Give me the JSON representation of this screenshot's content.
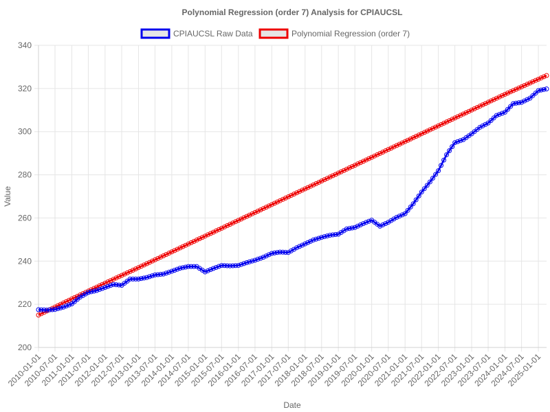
{
  "chart_data": {
    "type": "line",
    "title": "Polynomial Regression (order 7) Analysis for CPIAUCSL",
    "xlabel": "Date",
    "ylabel": "Value",
    "ylim": [
      200,
      340
    ],
    "y_ticks": [
      "200",
      "220",
      "240",
      "260",
      "280",
      "300",
      "320",
      "340"
    ],
    "x_ticks": [
      "2010-01-01",
      "2010-07-01",
      "2011-01-01",
      "2011-07-01",
      "2012-01-01",
      "2012-07-01",
      "2013-01-01",
      "2013-07-01",
      "2014-01-01",
      "2014-07-01",
      "2015-01-01",
      "2015-07-01",
      "2016-01-01",
      "2016-07-01",
      "2017-01-01",
      "2017-07-01",
      "2018-01-01",
      "2018-07-01",
      "2019-01-01",
      "2019-07-01",
      "2020-01-01",
      "2020-07-01",
      "2021-01-01",
      "2021-07-01",
      "2022-01-01",
      "2022-07-01",
      "2023-01-01",
      "2023-07-01",
      "2024-01-01",
      "2024-07-01",
      "2025-01-01"
    ],
    "x_range": [
      "2010-01-01",
      "2025-04-01"
    ],
    "grid": true,
    "legend_position": "top-center",
    "series": [
      {
        "name": "CPIAUCSL Raw Data",
        "color": "#0000ee",
        "points": [
          [
            "2010-01-01",
            217.5
          ],
          [
            "2010-04-01",
            217.3
          ],
          [
            "2010-07-01",
            217.6
          ],
          [
            "2010-10-01",
            218.7
          ],
          [
            "2011-01-01",
            220.2
          ],
          [
            "2011-04-01",
            223.3
          ],
          [
            "2011-07-01",
            225.5
          ],
          [
            "2011-10-01",
            226.4
          ],
          [
            "2012-01-01",
            227.8
          ],
          [
            "2012-04-01",
            229.2
          ],
          [
            "2012-07-01",
            228.8
          ],
          [
            "2012-10-01",
            231.7
          ],
          [
            "2013-01-01",
            231.7
          ],
          [
            "2013-04-01",
            232.4
          ],
          [
            "2013-07-01",
            233.6
          ],
          [
            "2013-10-01",
            234.0
          ],
          [
            "2014-01-01",
            235.3
          ],
          [
            "2014-04-01",
            236.7
          ],
          [
            "2014-07-01",
            237.5
          ],
          [
            "2014-10-01",
            237.5
          ],
          [
            "2015-01-01",
            235.0
          ],
          [
            "2015-04-01",
            236.6
          ],
          [
            "2015-07-01",
            238.0
          ],
          [
            "2015-10-01",
            237.8
          ],
          [
            "2016-01-01",
            238.0
          ],
          [
            "2016-04-01",
            239.3
          ],
          [
            "2016-07-01",
            240.4
          ],
          [
            "2016-10-01",
            241.8
          ],
          [
            "2017-01-01",
            243.6
          ],
          [
            "2017-04-01",
            244.2
          ],
          [
            "2017-07-01",
            244.0
          ],
          [
            "2017-10-01",
            246.2
          ],
          [
            "2018-01-01",
            248.0
          ],
          [
            "2018-04-01",
            249.8
          ],
          [
            "2018-07-01",
            251.0
          ],
          [
            "2018-10-01",
            252.0
          ],
          [
            "2019-01-01",
            252.5
          ],
          [
            "2019-04-01",
            254.9
          ],
          [
            "2019-07-01",
            255.6
          ],
          [
            "2019-10-01",
            257.4
          ],
          [
            "2020-01-01",
            259.0
          ],
          [
            "2020-04-01",
            256.2
          ],
          [
            "2020-07-01",
            258.0
          ],
          [
            "2020-10-01",
            260.3
          ],
          [
            "2021-01-01",
            262.0
          ],
          [
            "2021-04-01",
            266.6
          ],
          [
            "2021-07-01",
            272.0
          ],
          [
            "2021-10-01",
            276.7
          ],
          [
            "2022-01-01",
            281.9
          ],
          [
            "2022-04-01",
            289.3
          ],
          [
            "2022-07-01",
            294.9
          ],
          [
            "2022-10-01",
            296.3
          ],
          [
            "2023-01-01",
            299.0
          ],
          [
            "2023-04-01",
            302.0
          ],
          [
            "2023-07-01",
            304.0
          ],
          [
            "2023-10-01",
            307.5
          ],
          [
            "2024-01-01",
            309.0
          ],
          [
            "2024-04-01",
            313.0
          ],
          [
            "2024-07-01",
            313.6
          ],
          [
            "2024-10-01",
            315.5
          ],
          [
            "2025-01-01",
            319.0
          ],
          [
            "2025-04-01",
            319.8
          ]
        ]
      },
      {
        "name": "Polynomial Regression (order 7)",
        "color": "#ee0000",
        "points": [
          [
            "2010-01-01",
            215.0
          ],
          [
            "2011-01-01",
            222.5
          ],
          [
            "2012-01-01",
            229.8
          ],
          [
            "2013-01-01",
            237.0
          ],
          [
            "2014-01-01",
            244.3
          ],
          [
            "2015-01-01",
            251.6
          ],
          [
            "2016-01-01",
            258.9
          ],
          [
            "2017-01-01",
            266.2
          ],
          [
            "2018-01-01",
            273.5
          ],
          [
            "2019-01-01",
            280.8
          ],
          [
            "2020-01-01",
            288.1
          ],
          [
            "2021-01-01",
            295.4
          ],
          [
            "2022-01-01",
            302.7
          ],
          [
            "2023-01-01",
            310.0
          ],
          [
            "2024-01-01",
            317.3
          ],
          [
            "2025-01-01",
            324.3
          ],
          [
            "2025-04-01",
            326.0
          ]
        ]
      }
    ]
  }
}
